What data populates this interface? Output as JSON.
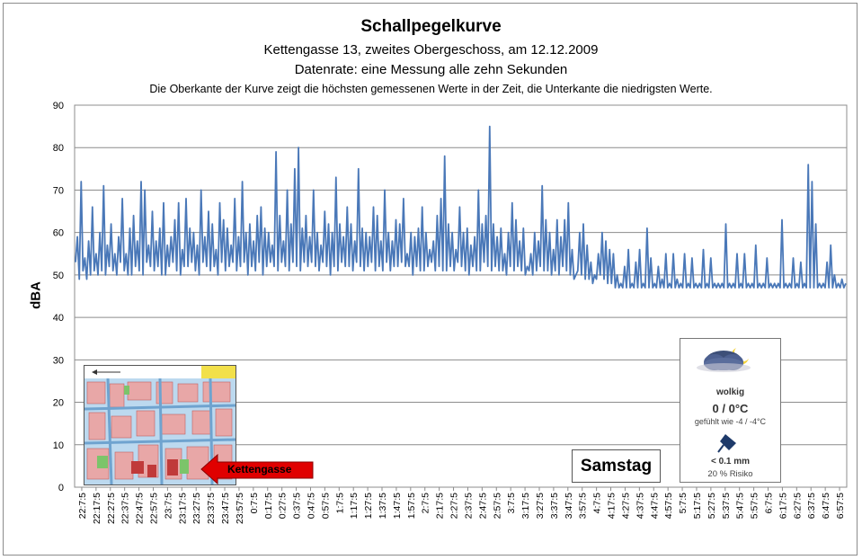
{
  "chart_data": {
    "type": "line",
    "title": "Schallpegelkurve",
    "subtitle_1": "Kettengasse 13, zweites Obergeschoss, am 12.12.2009",
    "subtitle_2": "Datenrate: eine Messung alle zehn Sekunden",
    "note": "Die Oberkante der Kurve zeigt die höchsten gemessenen Werte  in der Zeit, die Unterkante  die niedrigsten Werte.",
    "ylabel": "dBA",
    "ylim": [
      0,
      90
    ],
    "yticks": [
      0,
      10,
      20,
      30,
      40,
      50,
      60,
      70,
      80,
      90
    ],
    "grid": true,
    "x_tick_labels": [
      "22:7:5",
      "22:17:5",
      "22:27:5",
      "22:37:5",
      "22:47:5",
      "22:57:5",
      "23:7:5",
      "23:17:5",
      "23:27:5",
      "23:37:5",
      "23:47:5",
      "23:57:5",
      "0:7:5",
      "0:17:5",
      "0:27:5",
      "0:37:5",
      "0:47:5",
      "0:57:5",
      "1:7:5",
      "1:17:5",
      "1:27:5",
      "1:37:5",
      "1:47:5",
      "1:57:5",
      "2:7:5",
      "2:17:5",
      "2:27:5",
      "2:37:5",
      "2:47:5",
      "2:57:5",
      "3:7:5",
      "3:17:5",
      "3:27:5",
      "3:37:5",
      "3:47:5",
      "3:57:5",
      "4:7:5",
      "4:17:5",
      "4:27:5",
      "4:37:5",
      "4:47:5",
      "4:57:5",
      "5:7:5",
      "5:17:5",
      "5:27:5",
      "5:37:5",
      "5:47:5",
      "5:57:5",
      "6:7:5",
      "6:17:5",
      "6:27:5",
      "6:37:5",
      "6:47:5",
      "6:57:5"
    ],
    "series": [
      {
        "values": [
          59,
          72,
          54,
          58,
          66,
          55,
          60,
          71,
          57,
          62,
          55,
          59,
          68,
          55,
          61,
          64,
          58,
          72,
          70,
          57,
          65,
          58,
          61,
          67,
          57,
          59,
          63,
          67,
          56,
          68,
          61,
          60,
          57,
          70,
          59,
          65,
          62,
          56,
          67,
          63,
          61,
          57,
          68,
          59,
          72,
          60,
          62,
          58,
          64,
          66,
          61,
          60,
          57,
          79,
          64,
          58,
          70,
          62,
          75,
          80,
          61,
          64,
          59,
          70,
          60,
          57,
          65,
          62,
          60,
          73,
          62,
          59,
          66,
          62,
          58,
          75,
          61,
          60,
          59,
          66,
          64,
          58,
          70,
          60,
          58,
          63,
          62,
          68,
          55,
          60,
          59,
          61,
          66,
          60,
          56,
          58,
          64,
          68,
          78,
          62,
          60,
          56,
          66,
          60,
          61,
          57,
          59,
          70,
          62,
          64,
          85,
          62,
          59,
          61,
          55,
          60,
          67,
          63,
          58,
          61,
          52,
          55,
          60,
          58,
          71,
          63,
          60,
          56,
          63,
          59,
          63,
          67,
          56,
          50,
          60,
          62,
          57,
          53,
          50,
          55,
          60,
          58,
          56,
          55,
          50,
          48,
          52,
          56,
          48,
          53,
          56,
          48,
          61,
          54,
          48,
          52,
          49,
          55,
          48,
          55,
          49,
          48,
          55,
          48,
          54,
          48,
          48,
          56,
          48,
          54,
          48,
          48,
          48,
          62,
          48,
          48,
          55,
          48,
          55,
          48,
          48,
          57,
          48,
          48,
          54,
          48,
          48,
          48,
          63,
          48,
          48,
          54,
          48,
          53,
          48,
          76,
          72,
          62,
          48,
          48,
          53,
          57,
          50,
          48,
          49,
          48
        ],
        "min_values": [
          53,
          49,
          51,
          49,
          50,
          51,
          50,
          51,
          50,
          52,
          51,
          50,
          53,
          51,
          50,
          50,
          52,
          51,
          50,
          53,
          52,
          51,
          52,
          50,
          50,
          52,
          53,
          51,
          50,
          52,
          52,
          53,
          51,
          50,
          53,
          52,
          51,
          52,
          50,
          53,
          51,
          52,
          53,
          51,
          52,
          53,
          50,
          52,
          51,
          53,
          50,
          52,
          53,
          52,
          51,
          53,
          52,
          51,
          53,
          52,
          51,
          53,
          52,
          53,
          52,
          51,
          53,
          52,
          50,
          52,
          51,
          53,
          52,
          52,
          51,
          53,
          52,
          51,
          52,
          53,
          51,
          52,
          51,
          53,
          51,
          52,
          52,
          53,
          52,
          52,
          50,
          52,
          51,
          51,
          52,
          53,
          51,
          52,
          51,
          51,
          52,
          51,
          53,
          52,
          51,
          50,
          52,
          51,
          51,
          53,
          52,
          51,
          52,
          51,
          51,
          50,
          52,
          51,
          52,
          51,
          50,
          51,
          50,
          51,
          52,
          51,
          51,
          50,
          51,
          50,
          52,
          51,
          50,
          49,
          51,
          50,
          49,
          49,
          48,
          49,
          50,
          49,
          48,
          48,
          47,
          47,
          47,
          47,
          47,
          47,
          47,
          47,
          47,
          47,
          47,
          47,
          47,
          47,
          47,
          47,
          47,
          47,
          47,
          47,
          47,
          47,
          47,
          47,
          47,
          47,
          47,
          47,
          47,
          47,
          47,
          47,
          47,
          47,
          47,
          47,
          47,
          47,
          47,
          47,
          47,
          47,
          47,
          47,
          47,
          47,
          47,
          47,
          47,
          47,
          47,
          47,
          47,
          47,
          47,
          47,
          47,
          47,
          47,
          47,
          47,
          47,
          47,
          47
        ]
      }
    ]
  },
  "map": {
    "street_label": "Kettengasse"
  },
  "day_label": "Samstag",
  "weather": {
    "condition": "wolkig",
    "temperature": "0 / 0°C",
    "felt": "gefühlt wie -4 / -4°C",
    "precipitation": "< 0.1 mm",
    "risk": "20 % Risiko",
    "icon": "cloud-moon-icon",
    "rain_icon": "umbrella-icon"
  },
  "colors": {
    "line": "#4a78b8",
    "grid": "#8c8c8c",
    "arrow": "#e00000"
  }
}
